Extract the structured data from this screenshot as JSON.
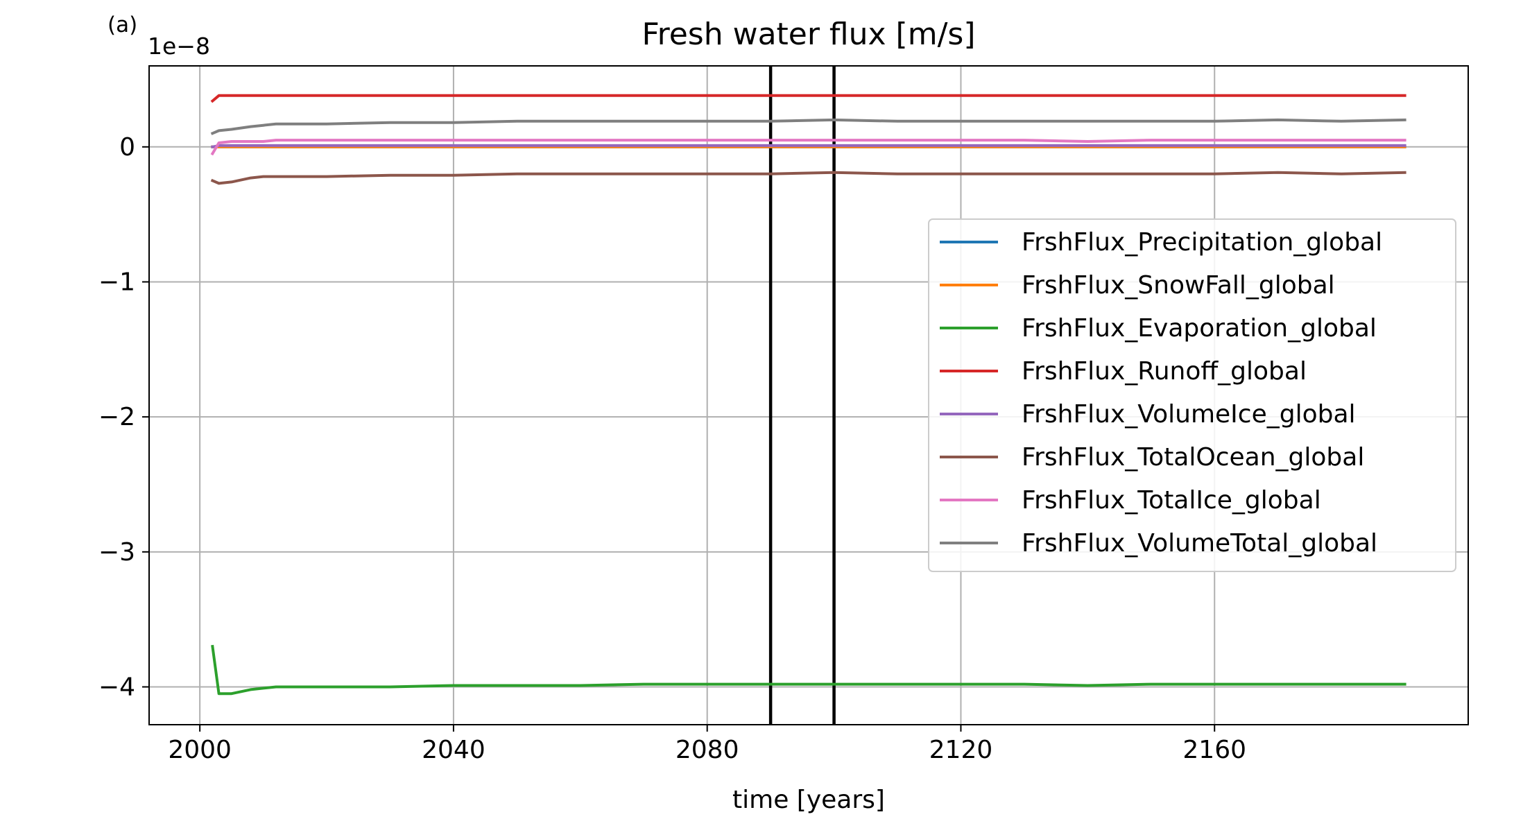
{
  "chart_data": {
    "type": "line",
    "panel_label": "(a)",
    "title": "Fresh water flux [m/s]",
    "xlabel": "time [years]",
    "ylabel": "",
    "offset_text": "1e−8",
    "xlim": [
      1992,
      2200
    ],
    "ylim": [
      -4.28,
      0.6
    ],
    "xticks": [
      2000,
      2040,
      2080,
      2120,
      2160
    ],
    "xtick_labels": [
      "2000",
      "2040",
      "2080",
      "2120",
      "2160"
    ],
    "yticks": [
      0,
      -1,
      -2,
      -3,
      -4
    ],
    "ytick_labels": [
      "0",
      "−1",
      "−2",
      "−3",
      "−4"
    ],
    "grid": true,
    "legend_position": "center-right",
    "vertical_lines": [
      2090,
      2100
    ],
    "x": [
      2002,
      2003,
      2005,
      2008,
      2010,
      2012,
      2015,
      2020,
      2030,
      2040,
      2050,
      2060,
      2070,
      2080,
      2090,
      2100,
      2110,
      2120,
      2130,
      2140,
      2150,
      2160,
      2170,
      2180,
      2190
    ],
    "series": [
      {
        "name": "FrshFlux_Precipitation_global",
        "color": "#1f77b4",
        "values": [
          0,
          0,
          0,
          0,
          0,
          0,
          0,
          0,
          0,
          0,
          0,
          0,
          0,
          0,
          0,
          0,
          0,
          0,
          0,
          0,
          0,
          0,
          0,
          0,
          0
        ]
      },
      {
        "name": "FrshFlux_SnowFall_global",
        "color": "#ff7f0e",
        "values": [
          0,
          0,
          0,
          0,
          0,
          0,
          0,
          0,
          0,
          0,
          0,
          0,
          0,
          0,
          0,
          0,
          0,
          0,
          0,
          0,
          0,
          0,
          0,
          0,
          0
        ]
      },
      {
        "name": "FrshFlux_Evaporation_global",
        "color": "#2ca02c",
        "values": [
          -3.7,
          -4.05,
          -4.05,
          -4.02,
          -4.01,
          -4.0,
          -4.0,
          -4.0,
          -4.0,
          -3.99,
          -3.99,
          -3.99,
          -3.98,
          -3.98,
          -3.98,
          -3.98,
          -3.98,
          -3.98,
          -3.98,
          -3.99,
          -3.98,
          -3.98,
          -3.98,
          -3.98,
          -3.98
        ]
      },
      {
        "name": "FrshFlux_Runoff_global",
        "color": "#d62728",
        "values": [
          0.34,
          0.38,
          0.38,
          0.38,
          0.38,
          0.38,
          0.38,
          0.38,
          0.38,
          0.38,
          0.38,
          0.38,
          0.38,
          0.38,
          0.38,
          0.38,
          0.38,
          0.38,
          0.38,
          0.38,
          0.38,
          0.38,
          0.38,
          0.38,
          0.38
        ]
      },
      {
        "name": "FrshFlux_VolumeIce_global",
        "color": "#9467bd",
        "values": [
          0.0,
          0.01,
          0.01,
          0.01,
          0.01,
          0.01,
          0.01,
          0.01,
          0.01,
          0.01,
          0.01,
          0.01,
          0.01,
          0.01,
          0.01,
          0.01,
          0.01,
          0.01,
          0.01,
          0.01,
          0.01,
          0.01,
          0.01,
          0.01,
          0.01
        ]
      },
      {
        "name": "FrshFlux_TotalOcean_global",
        "color": "#8c564b",
        "values": [
          -0.25,
          -0.27,
          -0.26,
          -0.23,
          -0.22,
          -0.22,
          -0.22,
          -0.22,
          -0.21,
          -0.21,
          -0.2,
          -0.2,
          -0.2,
          -0.2,
          -0.2,
          -0.19,
          -0.2,
          -0.2,
          -0.2,
          -0.2,
          -0.2,
          -0.2,
          -0.19,
          -0.2,
          -0.19
        ]
      },
      {
        "name": "FrshFlux_TotalIce_global",
        "color": "#e377c2",
        "values": [
          -0.05,
          0.03,
          0.04,
          0.04,
          0.04,
          0.05,
          0.05,
          0.05,
          0.05,
          0.05,
          0.05,
          0.05,
          0.05,
          0.05,
          0.05,
          0.05,
          0.05,
          0.05,
          0.05,
          0.04,
          0.05,
          0.05,
          0.05,
          0.05,
          0.05
        ]
      },
      {
        "name": "FrshFlux_VolumeTotal_global",
        "color": "#7f7f7f",
        "values": [
          0.1,
          0.12,
          0.13,
          0.15,
          0.16,
          0.17,
          0.17,
          0.17,
          0.18,
          0.18,
          0.19,
          0.19,
          0.19,
          0.19,
          0.19,
          0.2,
          0.19,
          0.19,
          0.19,
          0.19,
          0.19,
          0.19,
          0.2,
          0.19,
          0.2
        ]
      }
    ]
  }
}
